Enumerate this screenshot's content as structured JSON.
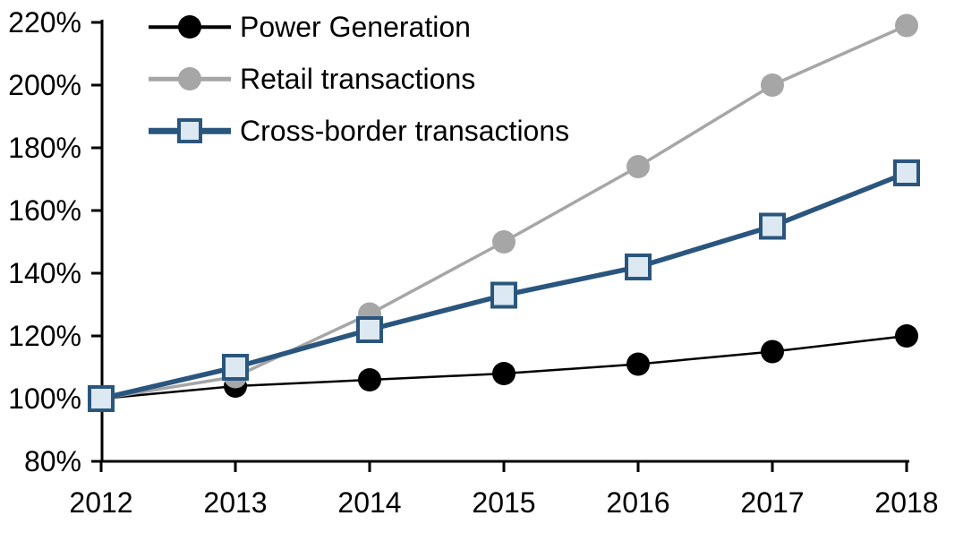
{
  "chart_data": {
    "type": "line",
    "x": [
      2012,
      2013,
      2014,
      2015,
      2016,
      2017,
      2018
    ],
    "series": [
      {
        "name": "Power Generation",
        "color": "#000000",
        "marker": "circle",
        "marker_fill": "#000000",
        "values": [
          100,
          104,
          106,
          108,
          111,
          115,
          120
        ]
      },
      {
        "name": "Retail transactions",
        "color": "#A6A6A6",
        "marker": "circle",
        "marker_fill": "#A6A6A6",
        "values": [
          100,
          107,
          127,
          150,
          174,
          200,
          219
        ]
      },
      {
        "name": "Cross-border transactions",
        "color": "#2A567E",
        "marker": "square",
        "marker_fill": "#DCE8F2",
        "values": [
          100,
          110,
          122,
          133,
          142,
          155,
          172
        ]
      }
    ],
    "title": "",
    "xlabel": "",
    "ylabel": "",
    "ylim": [
      80,
      220
    ],
    "yticks": [
      80,
      100,
      120,
      140,
      160,
      180,
      200,
      220
    ],
    "ytick_suffix": "%",
    "xtick_labels": [
      "2012",
      "2013",
      "2014",
      "2015",
      "2016",
      "2017",
      "2018"
    ],
    "grid": false,
    "legend_position": "top-left-inside",
    "axis_color": "#000000",
    "background_color": "#FFFFFF"
  }
}
